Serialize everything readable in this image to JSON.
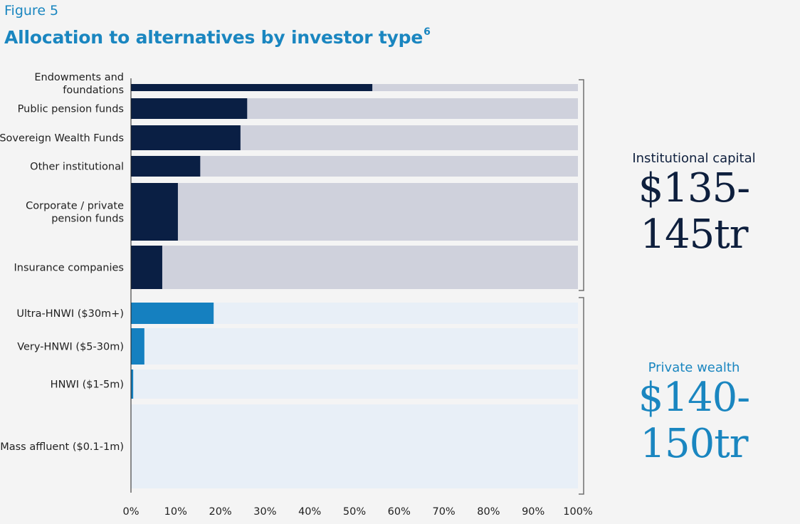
{
  "figure_label": "Figure 5",
  "title": "Allocation to alternatives by investor type",
  "title_footnote": "6",
  "groups": [
    {
      "name": "Institutional capital",
      "amount": "$135-145tr",
      "color": "#0e1f3d"
    },
    {
      "name": "Private wealth",
      "amount": "$140-150tr",
      "color": "#1a86c0"
    }
  ],
  "colors": {
    "institutional_fill": "#0a1f44",
    "institutional_track": "#cfd1dc",
    "private_fill": "#1580c0",
    "private_track": "#e8eff7",
    "bracket": "#6f6f6f",
    "axis": "#1f1f1f"
  },
  "chart_data": {
    "type": "bar",
    "orientation": "horizontal",
    "stacked_to": 100,
    "categories": [
      "Endowments and foundations",
      "Public pension funds",
      "Sovereign Wealth Funds",
      "Other institutional",
      "Corporate / private pension funds",
      "Insurance companies",
      "Ultra-HNWI ($30m+)",
      "Very-HNWI ($5-30m)",
      "HNWI ($1-5m)",
      "Mass affluent ($0.1-1m)"
    ],
    "values": [
      54,
      26,
      24.5,
      15.5,
      10.5,
      7,
      18.5,
      3,
      0.5,
      0
    ],
    "group_of_category": [
      0,
      0,
      0,
      0,
      0,
      0,
      1,
      1,
      1,
      1
    ],
    "xlim": [
      0,
      100
    ],
    "xticks": [
      "0%",
      "10%",
      "20%",
      "30%",
      "40%",
      "50%",
      "60%",
      "70%",
      "80%",
      "90%",
      "100%"
    ],
    "xlabel": "",
    "ylabel": ""
  }
}
